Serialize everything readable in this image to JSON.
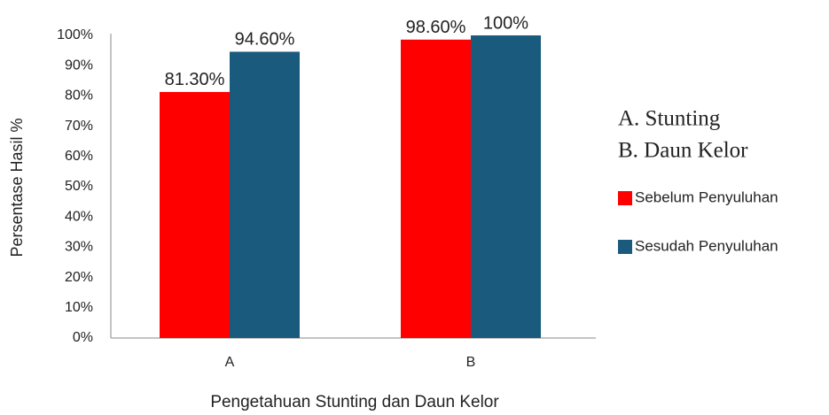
{
  "chart_data": {
    "type": "bar",
    "xlabel": "Pengetahuan Stunting dan Daun Kelor",
    "ylabel": "Persentase Hasil %",
    "annotations": [
      "A. Stunting",
      "B. Daun Kelor"
    ],
    "categories": [
      "A",
      "B"
    ],
    "series": [
      {
        "name": "Sebelum Penyuluhan",
        "color": "#ff0000",
        "values": [
          81.3,
          98.6
        ],
        "value_labels": [
          "81.30%",
          "98.60%"
        ]
      },
      {
        "name": "Sesudah Penyuluhan",
        "color": "#1a5b7d",
        "values": [
          94.6,
          100
        ],
        "value_labels": [
          "94.60%",
          "100%"
        ]
      }
    ],
    "ylim": [
      0,
      100
    ],
    "yticks": [
      {
        "value": 0,
        "label": "0%"
      },
      {
        "value": 10,
        "label": "10%"
      },
      {
        "value": 20,
        "label": "20%"
      },
      {
        "value": 30,
        "label": "30%"
      },
      {
        "value": 40,
        "label": "40%"
      },
      {
        "value": 50,
        "label": "50%"
      },
      {
        "value": 60,
        "label": "60%"
      },
      {
        "value": 70,
        "label": "70%"
      },
      {
        "value": 80,
        "label": "80%"
      },
      {
        "value": 90,
        "label": "90%"
      },
      {
        "value": 100,
        "label": "100%"
      }
    ],
    "legend": "right"
  }
}
